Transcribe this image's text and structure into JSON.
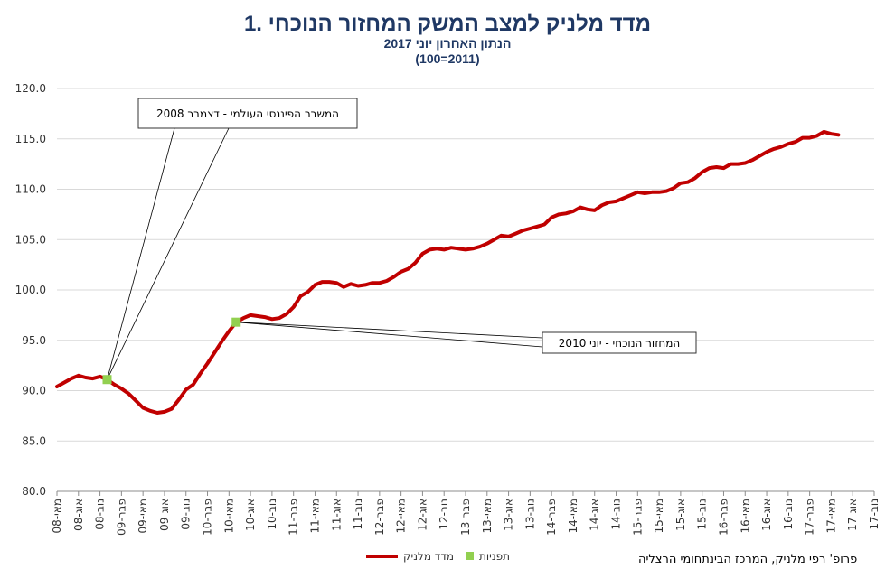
{
  "colors": {
    "series": "#c00000",
    "marker": "#92d050",
    "title": "#1f3864",
    "grid": "#d9d9d9"
  },
  "chart_data": {
    "type": "line",
    "title": "1. מדד מלניק למצב המשק המחזור הנוכחי",
    "subtitle": "הנתון האחרון יוני 2017",
    "subtitle2": "(100=2011)",
    "ylim": [
      80,
      120
    ],
    "yticks": [
      "80.0",
      "85.0",
      "90.0",
      "95.0",
      "100.0",
      "105.0",
      "110.0",
      "115.0",
      "120.0"
    ],
    "xticks": [
      "מאי-08",
      "אוג-08",
      "נוב-08",
      "פבר-09",
      "מאי-09",
      "אוג-09",
      "נוב-09",
      "פבר-10",
      "מאי-10",
      "אוג-10",
      "נוב-10",
      "פבר-11",
      "מאי-11",
      "אוג-11",
      "נוב-11",
      "פבר-12",
      "מאי-12",
      "אוג-12",
      "נוב-12",
      "פבר-13",
      "מאי-13",
      "אוג-13",
      "נוב-13",
      "פבר-14",
      "מאי-14",
      "אוג-14",
      "נוב-14",
      "פבר-15",
      "מאי-15",
      "אוג-15",
      "נוב-15",
      "פבר-16",
      "מאי-16",
      "אוג-16",
      "נוב-16",
      "פבר-17",
      "מאי-17",
      "אוג-17",
      "נוב-17"
    ],
    "start_month": "2008-05",
    "series": [
      {
        "name": "מדד מלניק",
        "values": [
          90.4,
          90.8,
          91.2,
          91.5,
          91.3,
          91.2,
          91.4,
          91.1,
          90.6,
          90.2,
          89.7,
          89.0,
          88.3,
          88.0,
          87.8,
          87.9,
          88.2,
          89.1,
          90.1,
          90.6,
          91.7,
          92.7,
          93.8,
          94.9,
          95.9,
          96.8,
          97.2,
          97.5,
          97.4,
          97.3,
          97.1,
          97.2,
          97.6,
          98.3,
          99.4,
          99.8,
          100.5,
          100.8,
          100.8,
          100.7,
          100.3,
          100.6,
          100.4,
          100.5,
          100.7,
          100.7,
          100.9,
          101.3,
          101.8,
          102.1,
          102.7,
          103.6,
          104.0,
          104.1,
          104.0,
          104.2,
          104.1,
          104.0,
          104.1,
          104.3,
          104.6,
          105.0,
          105.4,
          105.3,
          105.6,
          105.9,
          106.1,
          106.3,
          106.5,
          107.2,
          107.5,
          107.6,
          107.8,
          108.2,
          108.0,
          107.9,
          108.4,
          108.7,
          108.8,
          109.1,
          109.4,
          109.7,
          109.6,
          109.7,
          109.7,
          109.8,
          110.1,
          110.6,
          110.7,
          111.1,
          111.7,
          112.1,
          112.2,
          112.1,
          112.5,
          112.5,
          112.6,
          112.9,
          113.3,
          113.7,
          114.0,
          114.2,
          114.5,
          114.7,
          115.1,
          115.1,
          115.3,
          115.7,
          115.5,
          115.4
        ]
      },
      {
        "name": "תפניות",
        "points": [
          {
            "month": "2008-12",
            "value": 91.1
          },
          {
            "month": "2010-06",
            "value": 96.8
          }
        ]
      }
    ],
    "annotations": [
      {
        "text": "המשבר הפיננסי העולמי - דצמבר 2008",
        "month": "2008-12"
      },
      {
        "text": "המחזור הנוכחי - יוני 2010",
        "month": "2010-06"
      }
    ],
    "legend": {
      "placement": "bottom"
    }
  },
  "credit": "פרופ' רפי מלניק, המרכז הבינתחומי הרצליה"
}
